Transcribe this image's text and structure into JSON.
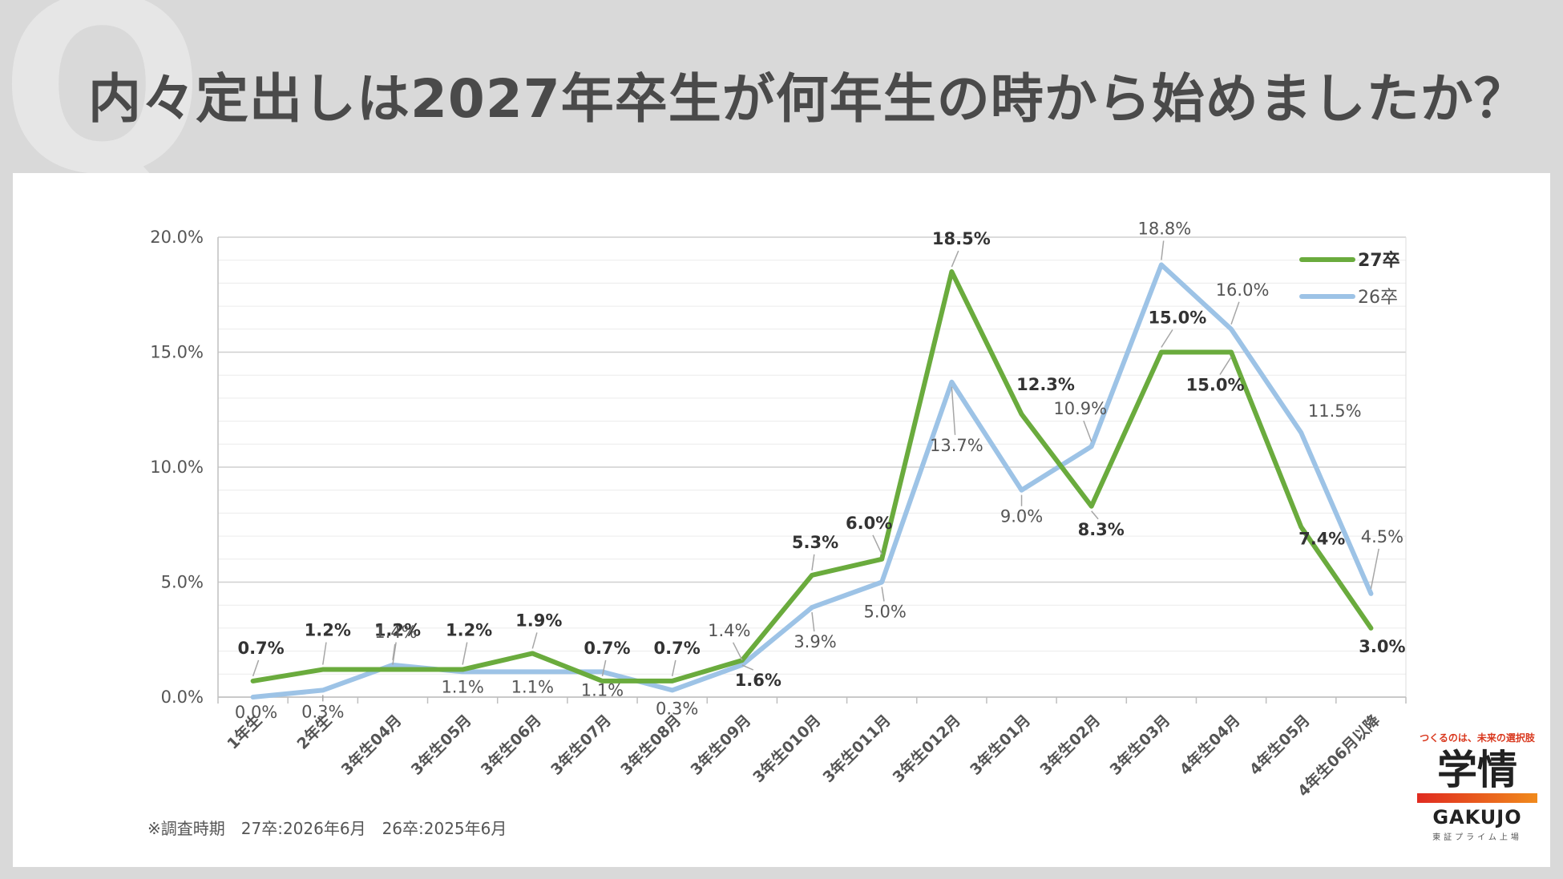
{
  "title": "内々定出しは2027年卒生が何年生の時から始めましたか？",
  "watermark": "Q",
  "footnote": "※調査時期　27卒:2026年6月　26卒:2025年6月",
  "logo": {
    "tagline": "つくるのは、未来の選択肢",
    "mark": "学情",
    "name": "GAKUJO",
    "sub": "東証プライム上場"
  },
  "colors": {
    "series27": "#6aab3d",
    "series26": "#9dc3e6",
    "grid": "#d9d9d9"
  },
  "chart_data": {
    "type": "line",
    "categories": [
      "1年生",
      "2年生",
      "3年生04月",
      "3年生05月",
      "3年生06月",
      "3年生07月",
      "3年生08月",
      "3年生09月",
      "3年生010月",
      "3年生011月",
      "3年生012月",
      "3年生01月",
      "3年生02月",
      "3年生03月",
      "4年生04月",
      "4年生05月",
      "4年生06月以降"
    ],
    "series": [
      {
        "name": "27卒",
        "values": [
          0.7,
          1.2,
          1.2,
          1.2,
          1.9,
          0.7,
          0.7,
          1.6,
          5.3,
          6.0,
          18.5,
          12.3,
          8.3,
          15.0,
          15.0,
          7.4,
          3.0
        ],
        "labels": [
          "0.7%",
          "1.2%",
          "1.2%",
          "1.2%",
          "1.9%",
          "0.7%",
          "0.7%",
          "1.6%",
          "5.3%",
          "6.0%",
          "18.5%",
          "12.3%",
          "8.3%",
          "15.0%",
          "15.0%",
          "7.4%",
          "3.0%"
        ]
      },
      {
        "name": "26卒",
        "values": [
          0.0,
          0.3,
          1.4,
          1.1,
          1.1,
          1.1,
          0.3,
          1.4,
          3.9,
          5.0,
          13.7,
          9.0,
          10.9,
          18.8,
          16.0,
          11.5,
          4.5
        ],
        "labels": [
          "0.0%",
          "0.3%",
          "1.4%",
          "1.1%",
          "1.1%",
          "1.1%",
          "0.3%",
          "1.4%",
          "3.9%",
          "5.0%",
          "13.7%",
          "9.0%",
          "10.9%",
          "18.8%",
          "16.0%",
          "11.5%",
          "4.5%"
        ]
      }
    ],
    "ylim": [
      0,
      20
    ],
    "yticks": [
      "0.0%",
      "5.0%",
      "10.0%",
      "15.0%",
      "20.0%"
    ],
    "xlabel": "",
    "ylabel": "",
    "grid": true,
    "legend": "top-right"
  }
}
